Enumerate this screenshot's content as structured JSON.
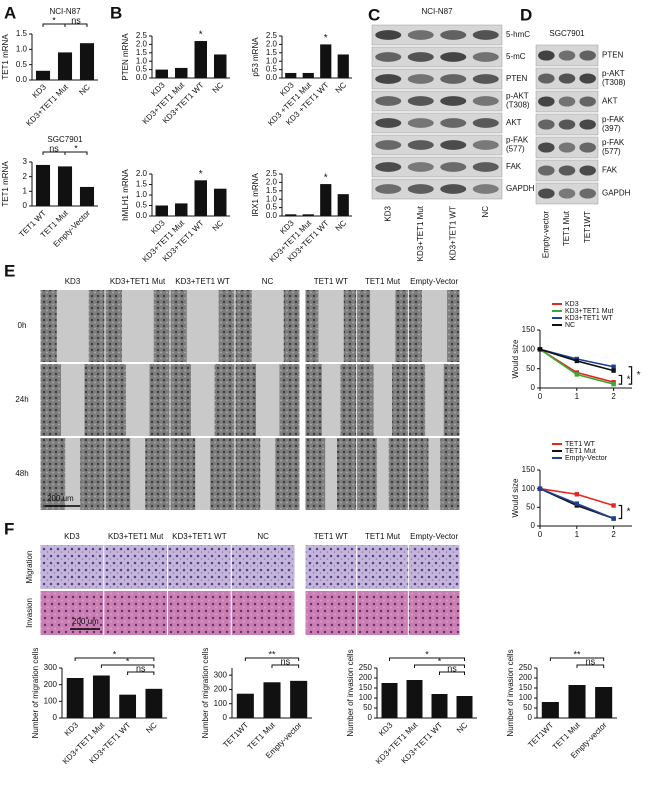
{
  "panel_labels": [
    "A",
    "B",
    "C",
    "D",
    "E",
    "F"
  ],
  "chart_data": [
    {
      "type": "bar",
      "title": "NCI-N87",
      "ylabel": "TET1 mRNA",
      "categories": [
        "KD3",
        "KD3+TET1 Mut",
        "NC"
      ],
      "values": [
        0.3,
        0.9,
        1.2
      ],
      "color": "#111111",
      "ylim": [
        0,
        1.5
      ],
      "yticks": [
        {
          "value": 0,
          "label": "0.0"
        },
        {
          "value": 0.5,
          "label": "0.5"
        },
        {
          "value": 1,
          "label": "1.0"
        },
        {
          "value": 1.5,
          "label": "1.5"
        }
      ],
      "annotations": [
        "*",
        "ns"
      ]
    },
    {
      "type": "bar",
      "title": "SGC7901",
      "ylabel": "TET1 mRNA",
      "categories": [
        "TET1 WT",
        "TET1 Mut",
        "Empty-Vector"
      ],
      "values": [
        2.8,
        2.7,
        1.3
      ],
      "color": "#111111",
      "ylim": [
        0,
        3
      ],
      "yticks": [
        0,
        1,
        2,
        3
      ],
      "annotations": [
        "ns",
        "*"
      ]
    },
    {
      "type": "bar",
      "ylabel": "PTEN mRNA",
      "categories": [
        "KD3",
        "KD3+TET1 Mut",
        "KD3+TET1 WT",
        "NC"
      ],
      "values": [
        0.5,
        0.6,
        2.2,
        1.4
      ],
      "color": "#111111",
      "ylim": [
        0,
        2.5
      ],
      "yticks": [
        {
          "value": 0,
          "label": "0.0"
        },
        {
          "value": 0.5,
          "label": "0.5"
        },
        {
          "value": 1,
          "label": "1.0"
        },
        {
          "value": 1.5,
          "label": "1.5"
        },
        {
          "value": 2,
          "label": "2.0"
        },
        {
          "value": 2.5,
          "label": "2.5"
        }
      ],
      "annotations": [
        "*"
      ]
    },
    {
      "type": "bar",
      "ylabel": "p53 mRNA",
      "categories": [
        "KD3",
        "KD3 +TET1 Mut",
        "KD3 +TET1 WT",
        "NC"
      ],
      "values": [
        0.3,
        0.3,
        2.0,
        1.4
      ],
      "color": "#111111",
      "ylim": [
        0,
        2.5
      ],
      "yticks": [
        {
          "value": 0,
          "label": "0.0"
        },
        {
          "value": 0.5,
          "label": "0.5"
        },
        {
          "value": 1,
          "label": "1.0"
        },
        {
          "value": 1.5,
          "label": "1.5"
        },
        {
          "value": 2,
          "label": "2.0"
        },
        {
          "value": 2.5,
          "label": "2.5"
        }
      ],
      "annotations": [
        "*"
      ]
    },
    {
      "type": "bar",
      "ylabel": "hMLH1 mRNA",
      "categories": [
        "KD3",
        "KD3+TET1 Mut",
        "KD3+TET1 WT",
        "NC"
      ],
      "values": [
        0.5,
        0.6,
        1.7,
        1.3
      ],
      "color": "#111111",
      "ylim": [
        0,
        2
      ],
      "yticks": [
        {
          "value": 0,
          "label": "0.0"
        },
        {
          "value": 0.5,
          "label": "0.5"
        },
        {
          "value": 1,
          "label": "1.0"
        },
        {
          "value": 1.5,
          "label": "1.5"
        },
        {
          "value": 2,
          "label": "2.0"
        }
      ],
      "annotations": [
        "*"
      ]
    },
    {
      "type": "bar",
      "ylabel": "IRX1 mRNA",
      "categories": [
        "KD3",
        "KD3+TET1 Mut",
        "KD3+TET1 WT",
        "NC"
      ],
      "values": [
        0.1,
        0.1,
        1.9,
        1.3
      ],
      "color": "#111111",
      "ylim": [
        0,
        2.5
      ],
      "yticks": [
        {
          "value": 0,
          "label": "0.0"
        },
        {
          "value": 0.5,
          "label": "0.5"
        },
        {
          "value": 1,
          "label": "1.0"
        },
        {
          "value": 1.5,
          "label": "1.5"
        },
        {
          "value": 2,
          "label": "2.0"
        },
        {
          "value": 2.5,
          "label": "2.5"
        }
      ],
      "annotations": [
        "*"
      ]
    },
    {
      "type": "line",
      "ylabel": "Would size",
      "x": [
        0,
        1,
        2
      ],
      "xlim": [
        0,
        2.5
      ],
      "xticks": [
        0,
        1,
        2
      ],
      "ylim": [
        0,
        150
      ],
      "yticks": [
        0,
        50,
        100,
        150
      ],
      "series": [
        {
          "name": "KD3",
          "color": "#e8251f",
          "values": [
            100,
            40,
            15
          ]
        },
        {
          "name": "KD3+TET1 Mut",
          "color": "#3aa935",
          "values": [
            100,
            35,
            10
          ]
        },
        {
          "name": "KD3+TET1 WT",
          "color": "#1d3f9a",
          "values": [
            100,
            75,
            55
          ]
        },
        {
          "name": "NC",
          "color": "#111111",
          "values": [
            100,
            70,
            45
          ]
        }
      ],
      "annotations": [
        "*",
        "*"
      ]
    },
    {
      "type": "line",
      "ylabel": "Would size",
      "x": [
        0,
        1,
        2
      ],
      "xlim": [
        0,
        2.5
      ],
      "xticks": [
        0,
        1,
        2
      ],
      "ylim": [
        0,
        150
      ],
      "yticks": [
        0,
        50,
        100,
        150
      ],
      "series": [
        {
          "name": "TET1 WT",
          "color": "#e8251f",
          "values": [
            100,
            85,
            55
          ]
        },
        {
          "name": "TET1 Mut",
          "color": "#111111",
          "values": [
            100,
            55,
            20
          ]
        },
        {
          "name": "Empty-Vector",
          "color": "#1d3f9a",
          "values": [
            100,
            60,
            20
          ]
        }
      ],
      "annotations": [
        "*"
      ]
    },
    {
      "type": "bar",
      "ylabel": "Number of migration cells",
      "categories": [
        "KD3",
        "KD3+TET1 Mut",
        "KD3+TET1 WT",
        "NC"
      ],
      "values": [
        240,
        255,
        140,
        175
      ],
      "color": "#111111",
      "ylim": [
        0,
        300
      ],
      "yticks": [
        0,
        100,
        200,
        300
      ],
      "annotations": [
        "*",
        "*",
        "ns"
      ]
    },
    {
      "type": "bar",
      "ylabel": "Number of migration cells",
      "categories": [
        "TET1WT",
        "TET1 Mut",
        "Empty-vector"
      ],
      "values": [
        170,
        250,
        260
      ],
      "color": "#111111",
      "ylim": [
        0,
        350
      ],
      "yticks": [
        0,
        100,
        200,
        300
      ],
      "annotations": [
        "**",
        "ns"
      ]
    },
    {
      "type": "bar",
      "ylabel": "Number of invasion cells",
      "categories": [
        "KD3",
        "KD3+TET1 Mut",
        "KD3+TET1 WT",
        "NC"
      ],
      "values": [
        175,
        190,
        120,
        110
      ],
      "color": "#111111",
      "ylim": [
        0,
        250
      ],
      "yticks": [
        0,
        50,
        100,
        150,
        200,
        250
      ],
      "annotations": [
        "*",
        "*",
        "ns"
      ]
    },
    {
      "type": "bar",
      "ylabel": "Number of invasion cells",
      "categories": [
        "TET1WT",
        "TET1 Mut",
        "Empty-vector"
      ],
      "values": [
        80,
        165,
        155
      ],
      "color": "#111111",
      "ylim": [
        0,
        250
      ],
      "yticks": [
        0,
        50,
        100,
        150,
        200,
        250
      ],
      "annotations": [
        "**",
        "ns"
      ]
    }
  ],
  "blots": [
    {
      "title": "NCI-N87",
      "rows": [
        [
          "5-hmC"
        ],
        [
          "5-mC"
        ],
        [
          "PTEN"
        ],
        [
          "p-AKT",
          "(T308)"
        ],
        [
          "AKT"
        ],
        [
          "p-FAK",
          "(577)"
        ],
        [
          "FAK"
        ],
        [
          "GAPDH"
        ]
      ],
      "lanes": [
        "KD3",
        "KD3+TET1 Mut",
        "KD3+TET1 WT",
        "NC"
      ]
    },
    {
      "title": "SGC7901",
      "rows": [
        [
          "PTEN"
        ],
        [
          "p-AKT",
          "(T308)"
        ],
        [
          "AKT"
        ],
        [
          "p-FAK",
          "(397)"
        ],
        [
          "p-FAK",
          "(577)"
        ],
        [
          "FAK"
        ],
        [
          "GAPDH"
        ]
      ],
      "lanes": [
        "Empty-vector",
        "TET1 Mut",
        "TET1WT"
      ]
    }
  ],
  "wound": {
    "groups": [
      [
        "KD3",
        "KD3+TET1 Mut",
        "KD3+TET1 WT",
        "NC"
      ],
      [
        "TET1 WT",
        "TET1 Mut",
        "Empty-Vector"
      ]
    ],
    "rows": [
      "0h",
      "24h",
      "48h"
    ],
    "scale_bar": "200 um"
  },
  "transwell": {
    "groups": [
      [
        "KD3",
        "KD3+TET1 Mut",
        "KD3+TET1 WT",
        "NC"
      ],
      [
        "TET1 WT",
        "TET1 Mut",
        "Empty-Vector"
      ]
    ],
    "rows": [
      "Migration",
      "Invasion"
    ],
    "scale_bar": "200 um"
  }
}
